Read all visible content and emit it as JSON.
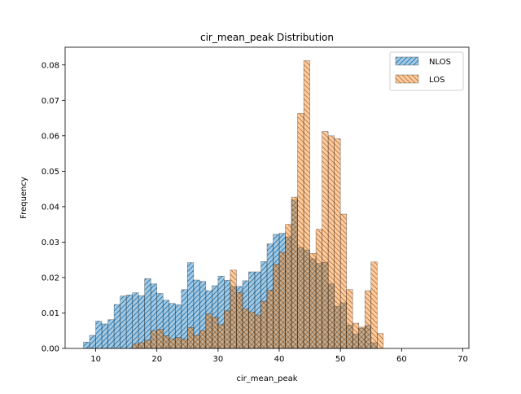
{
  "colors": {
    "nlos_fill": "#1f77b4",
    "los_fill": "#ff7f0e",
    "edge": "#000000",
    "background": "#ffffff"
  },
  "chart_data": {
    "type": "bar",
    "title": "cir_mean_peak Distribution",
    "xlabel": "cir_mean_peak",
    "ylabel": "Frequency",
    "xlim": [
      5.0,
      71.0
    ],
    "ylim": [
      0,
      0.085
    ],
    "xticks": [
      10,
      20,
      30,
      40,
      50,
      60,
      70
    ],
    "yticks": [
      0.0,
      0.01,
      0.02,
      0.03,
      0.04,
      0.05,
      0.06,
      0.07,
      0.08
    ],
    "ytick_labels": [
      "0.00",
      "0.01",
      "0.02",
      "0.03",
      "0.04",
      "0.05",
      "0.06",
      "0.07",
      "0.08"
    ],
    "legend_position": "top-right",
    "series": [
      {
        "name": "NLOS",
        "color": "#1f77b4",
        "hatch": "diagonal-up",
        "bin_start": 8.0,
        "bin_width": 1.0,
        "values": [
          0.0018,
          0.0037,
          0.0077,
          0.0069,
          0.0081,
          0.0124,
          0.0148,
          0.0151,
          0.0157,
          0.0149,
          0.0197,
          0.0182,
          0.0155,
          0.0136,
          0.0127,
          0.0123,
          0.0166,
          0.0242,
          0.0193,
          0.0189,
          0.0163,
          0.0177,
          0.0204,
          0.0192,
          0.0175,
          0.0175,
          0.0191,
          0.0216,
          0.0216,
          0.0245,
          0.0295,
          0.0322,
          0.0325,
          0.0315,
          0.0419,
          0.0285,
          0.0278,
          0.0253,
          0.024,
          0.0243,
          0.0182,
          0.0119,
          0.0129,
          0.0066,
          0.0041,
          0.0057,
          0.0065,
          0.0016
        ],
        "indices": [
          0,
          1,
          2,
          3,
          4,
          5,
          6,
          7,
          8,
          9,
          10,
          11,
          12,
          13,
          14,
          15,
          16,
          17,
          18,
          19,
          20,
          21,
          22,
          23,
          24,
          25,
          26,
          27,
          28,
          29,
          30,
          31,
          32,
          33,
          34,
          35,
          36,
          37,
          38,
          39,
          40,
          41,
          42,
          43,
          44,
          45,
          46,
          47
        ]
      },
      {
        "name": "LOS",
        "color": "#ff7f0e",
        "hatch": "diagonal-down",
        "bin_start": 16.0,
        "bin_width": 1.0,
        "values": [
          0.0012,
          0.0016,
          0.0023,
          0.0049,
          0.0054,
          0.0036,
          0.0027,
          0.0031,
          0.0026,
          0.0059,
          0.0037,
          0.005,
          0.0097,
          0.0088,
          0.0067,
          0.0106,
          0.0221,
          0.0157,
          0.0111,
          0.0103,
          0.0094,
          0.0133,
          0.0164,
          0.0237,
          0.0271,
          0.035,
          0.0427,
          0.0663,
          0.0812,
          0.0268,
          0.0336,
          0.0612,
          0.06,
          0.0592,
          0.0379,
          0.0166,
          0.0071,
          0.006,
          0.0163,
          0.0244,
          0.0042
        ],
        "indices": [
          0,
          1,
          2,
          3,
          4,
          5,
          6,
          7,
          8,
          9,
          10,
          11,
          12,
          13,
          14,
          15,
          16,
          17,
          18,
          19,
          20,
          21,
          22,
          23,
          24,
          25,
          26,
          27,
          28,
          29,
          30,
          31,
          32,
          33,
          34,
          35,
          36,
          37,
          38,
          39,
          40
        ]
      }
    ]
  }
}
